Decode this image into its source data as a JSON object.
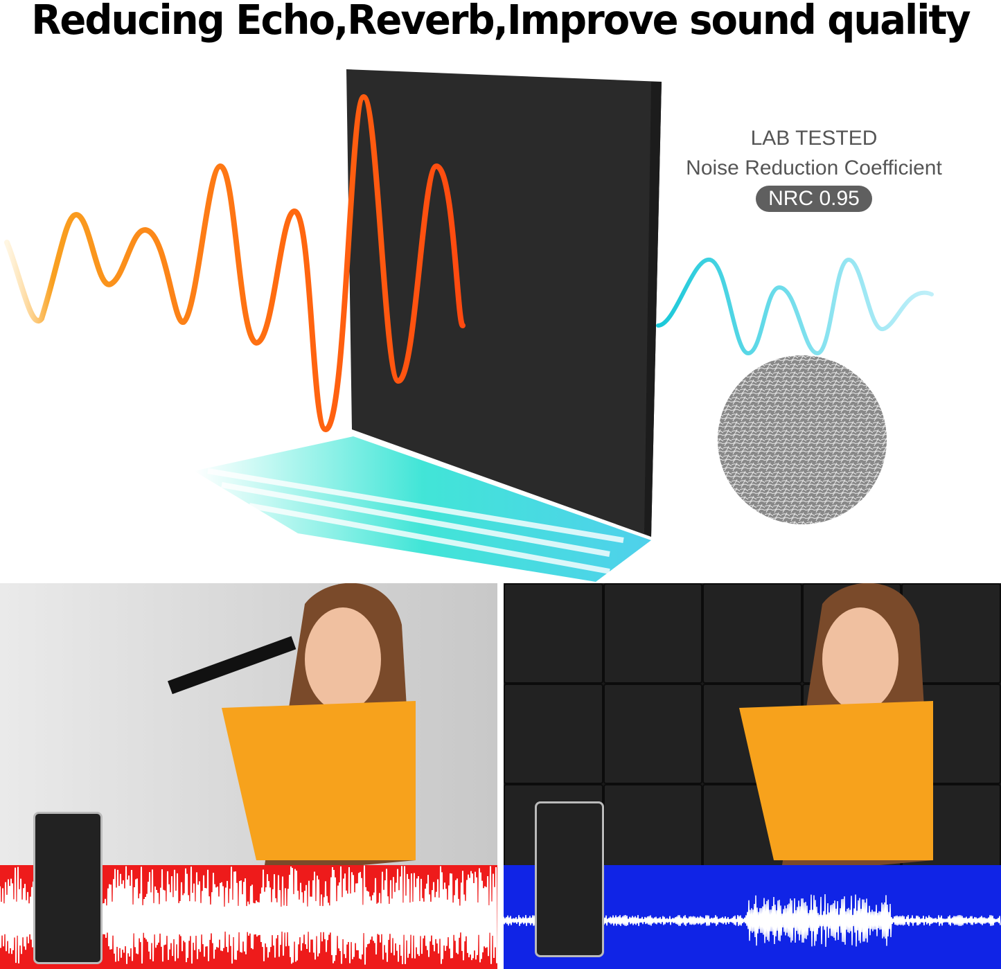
{
  "title": "Reducing Echo,Reverb,Improve sound quality",
  "lab": {
    "line1": "LAB TESTED",
    "line2": "Noise Reduction Coefficient",
    "badge": "NRC 0.95"
  },
  "colors": {
    "incoming_wave": "#ff6a10",
    "outgoing_wave": "#22c9e0",
    "panel": "#2a2a2a",
    "before_bar": "#ee1b1b",
    "after_bar": "#1024e6"
  }
}
